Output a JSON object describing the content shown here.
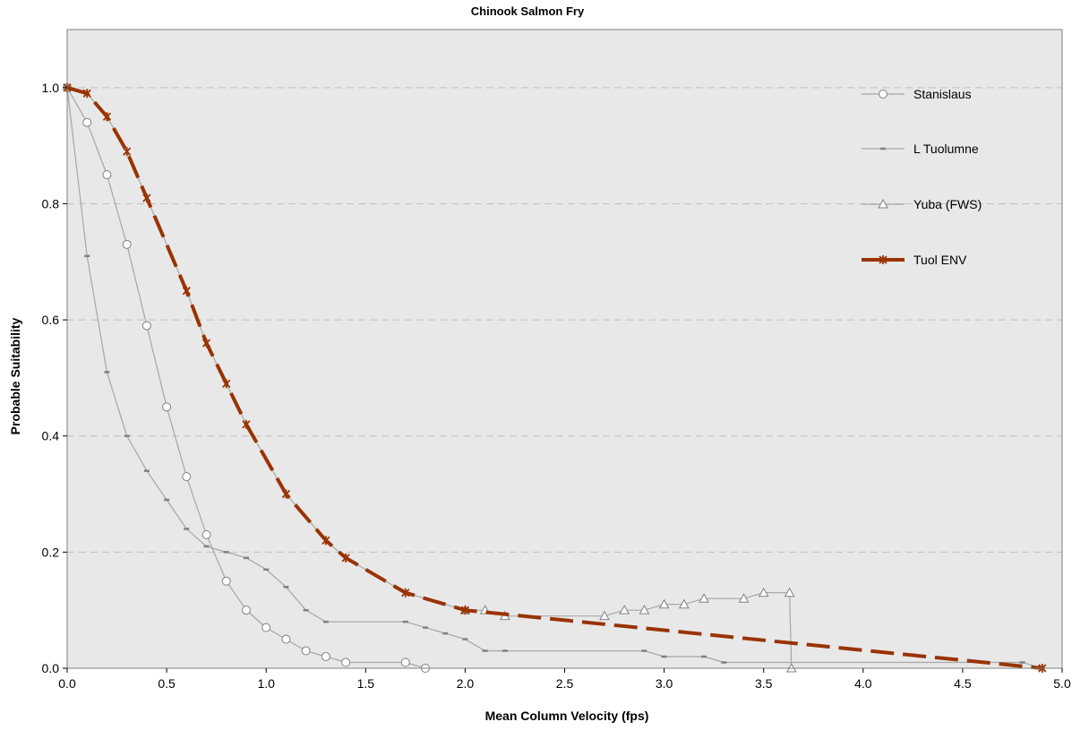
{
  "chart_data": {
    "type": "line",
    "title": "Chinook Salmon Fry",
    "xlabel": "Mean Column Velocity (fps)",
    "ylabel": "Probable Suitability",
    "xlim": [
      0,
      5
    ],
    "ylim": [
      0,
      1.1
    ],
    "x_ticks": [
      "0.0",
      "0.5",
      "1.0",
      "1.5",
      "2.0",
      "2.5",
      "3.0",
      "3.5",
      "4.0",
      "4.5",
      "5.0"
    ],
    "y_ticks": [
      "0.0",
      "0.2",
      "0.4",
      "0.6",
      "0.8",
      "1.0"
    ],
    "grid": "horizontal dashed",
    "legend_position": "top-right",
    "colors": {
      "plot_background": "#e8e8e8",
      "gray_series": "#a6a6a6",
      "tuol_env": "#993300"
    },
    "series": [
      {
        "name": "Stanislaus",
        "marker": "circle",
        "style": "solid",
        "points": [
          [
            0,
            1.0
          ],
          [
            0.1,
            0.94
          ],
          [
            0.2,
            0.85
          ],
          [
            0.3,
            0.73
          ],
          [
            0.4,
            0.59
          ],
          [
            0.5,
            0.45
          ],
          [
            0.6,
            0.33
          ],
          [
            0.7,
            0.23
          ],
          [
            0.8,
            0.15
          ],
          [
            0.9,
            0.1
          ],
          [
            1.0,
            0.07
          ],
          [
            1.1,
            0.05
          ],
          [
            1.2,
            0.03
          ],
          [
            1.3,
            0.02
          ],
          [
            1.4,
            0.01
          ],
          [
            1.7,
            0.01
          ],
          [
            1.8,
            0.0
          ]
        ]
      },
      {
        "name": "L Tuolumne",
        "marker": "dash",
        "style": "solid",
        "points": [
          [
            0,
            1.0
          ],
          [
            0.1,
            0.71
          ],
          [
            0.2,
            0.51
          ],
          [
            0.3,
            0.4
          ],
          [
            0.4,
            0.34
          ],
          [
            0.5,
            0.29
          ],
          [
            0.6,
            0.24
          ],
          [
            0.7,
            0.21
          ],
          [
            0.8,
            0.2
          ],
          [
            0.9,
            0.19
          ],
          [
            1.0,
            0.17
          ],
          [
            1.1,
            0.14
          ],
          [
            1.2,
            0.1
          ],
          [
            1.3,
            0.08
          ],
          [
            1.7,
            0.08
          ],
          [
            1.8,
            0.07
          ],
          [
            1.9,
            0.06
          ],
          [
            2.0,
            0.05
          ],
          [
            2.1,
            0.03
          ],
          [
            2.2,
            0.03
          ],
          [
            2.9,
            0.03
          ],
          [
            3.0,
            0.02
          ],
          [
            3.2,
            0.02
          ],
          [
            3.3,
            0.01
          ],
          [
            4.8,
            0.01
          ],
          [
            4.9,
            0.0
          ]
        ]
      },
      {
        "name": "Yuba (FWS)",
        "marker": "triangle",
        "style": "solid",
        "points": [
          [
            0,
            1.0
          ],
          [
            0.1,
            0.99
          ],
          [
            0.2,
            0.95
          ],
          [
            0.3,
            0.89
          ],
          [
            0.4,
            0.81
          ],
          [
            0.6,
            0.65
          ],
          [
            0.7,
            0.56
          ],
          [
            0.8,
            0.49
          ],
          [
            0.9,
            0.42
          ],
          [
            1.1,
            0.3
          ],
          [
            1.3,
            0.22
          ],
          [
            1.4,
            0.19
          ],
          [
            1.7,
            0.13
          ],
          [
            2.0,
            0.1
          ],
          [
            2.1,
            0.1
          ],
          [
            2.2,
            0.09
          ],
          [
            2.7,
            0.09
          ],
          [
            2.8,
            0.1
          ],
          [
            2.9,
            0.1
          ],
          [
            3.0,
            0.11
          ],
          [
            3.1,
            0.11
          ],
          [
            3.2,
            0.12
          ],
          [
            3.4,
            0.12
          ],
          [
            3.5,
            0.13
          ],
          [
            3.63,
            0.13
          ],
          [
            3.64,
            0.0
          ]
        ]
      },
      {
        "name": "Tuol ENV",
        "marker": "asterisk",
        "style": "dashed",
        "points": [
          [
            0,
            1.0
          ],
          [
            0.1,
            0.99
          ],
          [
            0.2,
            0.95
          ],
          [
            0.3,
            0.89
          ],
          [
            0.4,
            0.81
          ],
          [
            0.6,
            0.65
          ],
          [
            0.7,
            0.56
          ],
          [
            0.8,
            0.49
          ],
          [
            0.9,
            0.42
          ],
          [
            1.1,
            0.3
          ],
          [
            1.3,
            0.22
          ],
          [
            1.4,
            0.19
          ],
          [
            1.7,
            0.13
          ],
          [
            2.0,
            0.1
          ],
          [
            4.9,
            0.0
          ]
        ]
      }
    ]
  }
}
